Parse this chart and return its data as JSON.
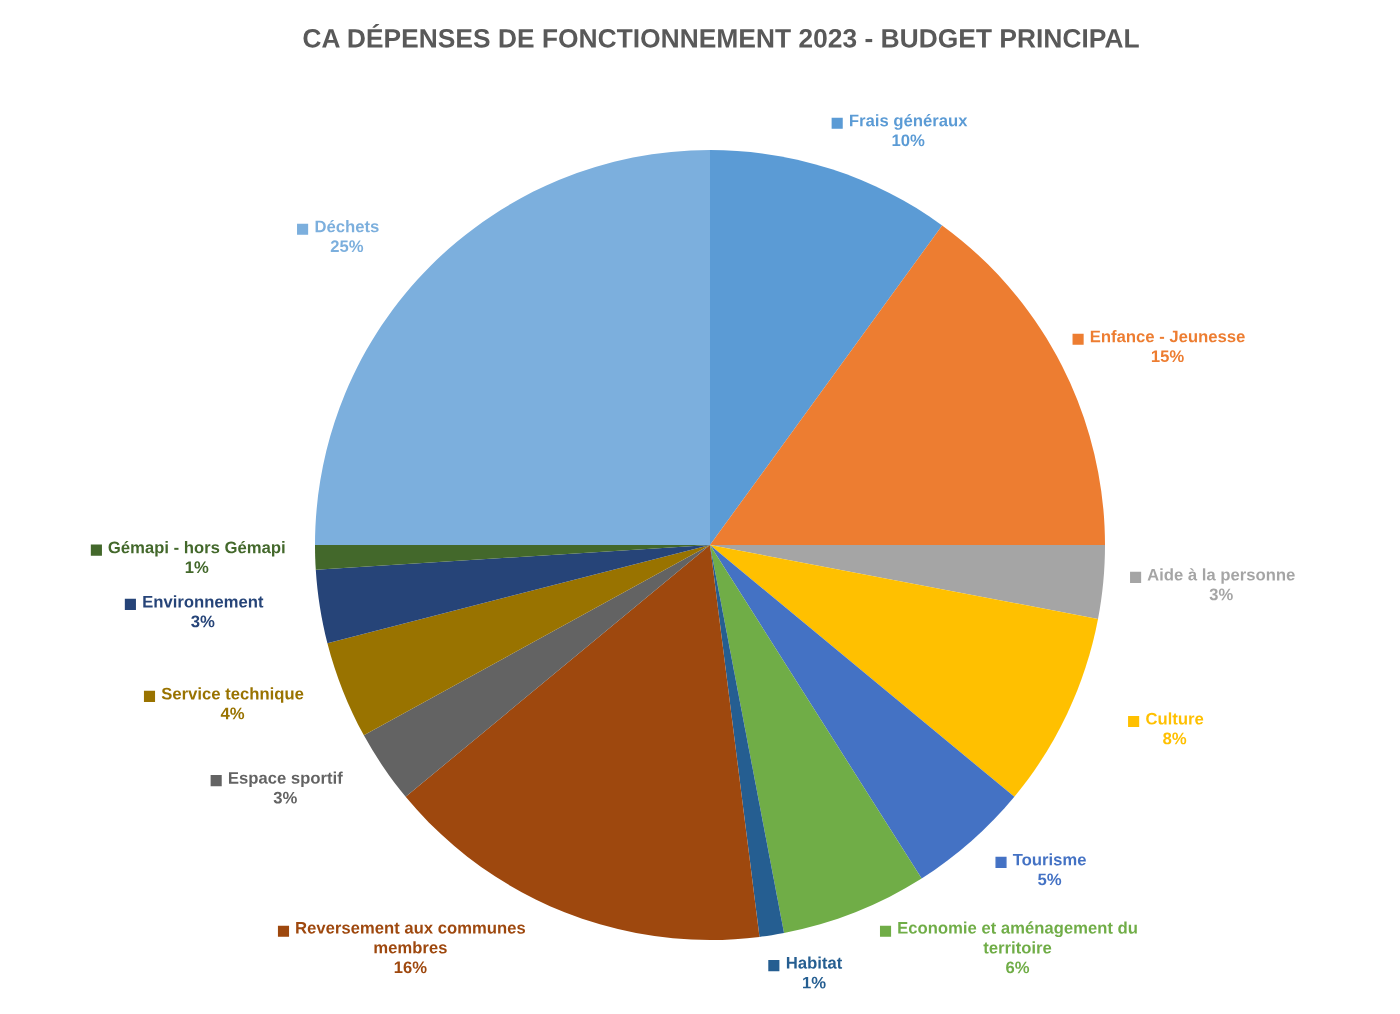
{
  "chart_data": {
    "type": "pie",
    "title": "CA DÉPENSES DE FONCTIONNEMENT 2023 - BUDGET PRINCIPAL",
    "categories": [
      "Frais généraux",
      "Enfance - Jeunesse",
      "Aide à la personne",
      "Culture",
      "Tourisme",
      "Economie et aménagement du\nterritoire",
      "Habitat",
      "Reversement aux communes\nmembres",
      "Espace sportif",
      "Service technique",
      "Environnement",
      "Gémapi - hors Gémapi",
      "Déchets"
    ],
    "values": [
      10,
      15,
      3,
      8,
      5,
      6,
      1,
      16,
      3,
      4,
      3,
      1,
      25
    ],
    "colors": [
      "#5b9bd5",
      "#ed7d31",
      "#a5a5a5",
      "#ffc000",
      "#4472c4",
      "#70ad47",
      "#255e91",
      "#9e480e",
      "#636363",
      "#997300",
      "#264478",
      "#43682b",
      "#7cafdd"
    ],
    "value_labels": [
      "10%",
      "15%",
      "3%",
      "8%",
      "5%",
      "6%",
      "1%",
      "16%",
      "3%",
      "4%",
      "3%",
      "1%",
      "25%"
    ],
    "legend": true
  }
}
